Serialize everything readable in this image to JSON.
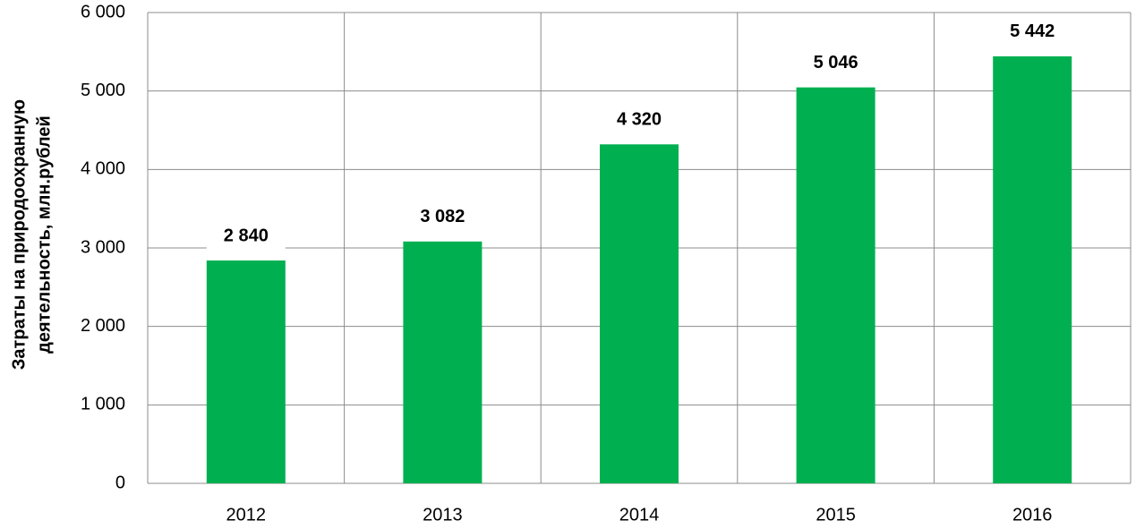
{
  "chart_data": {
    "type": "bar",
    "ylabel": [
      "Затраты на природоохранную",
      "деятельность, млн.рублей"
    ],
    "categories": [
      "2012",
      "2013",
      "2014",
      "2015",
      "2016"
    ],
    "values": [
      2840,
      3082,
      4320,
      5046,
      5442
    ],
    "value_labels": [
      "2 840",
      "3 082",
      "4 320",
      "5 046",
      "5 442"
    ],
    "color": "#00b050",
    "ylim": [
      0,
      6000
    ],
    "yticks": [
      0,
      {
        "value": 1000,
        "label": "1 000"
      },
      {
        "value": 2000,
        "label": "2 000"
      },
      {
        "value": 3000,
        "label": "3 000"
      },
      {
        "value": 4000,
        "label": "4 000"
      },
      {
        "value": 5000,
        "label": "5 000"
      },
      {
        "value": 6000,
        "label": "6 000"
      }
    ],
    "grid": true
  }
}
